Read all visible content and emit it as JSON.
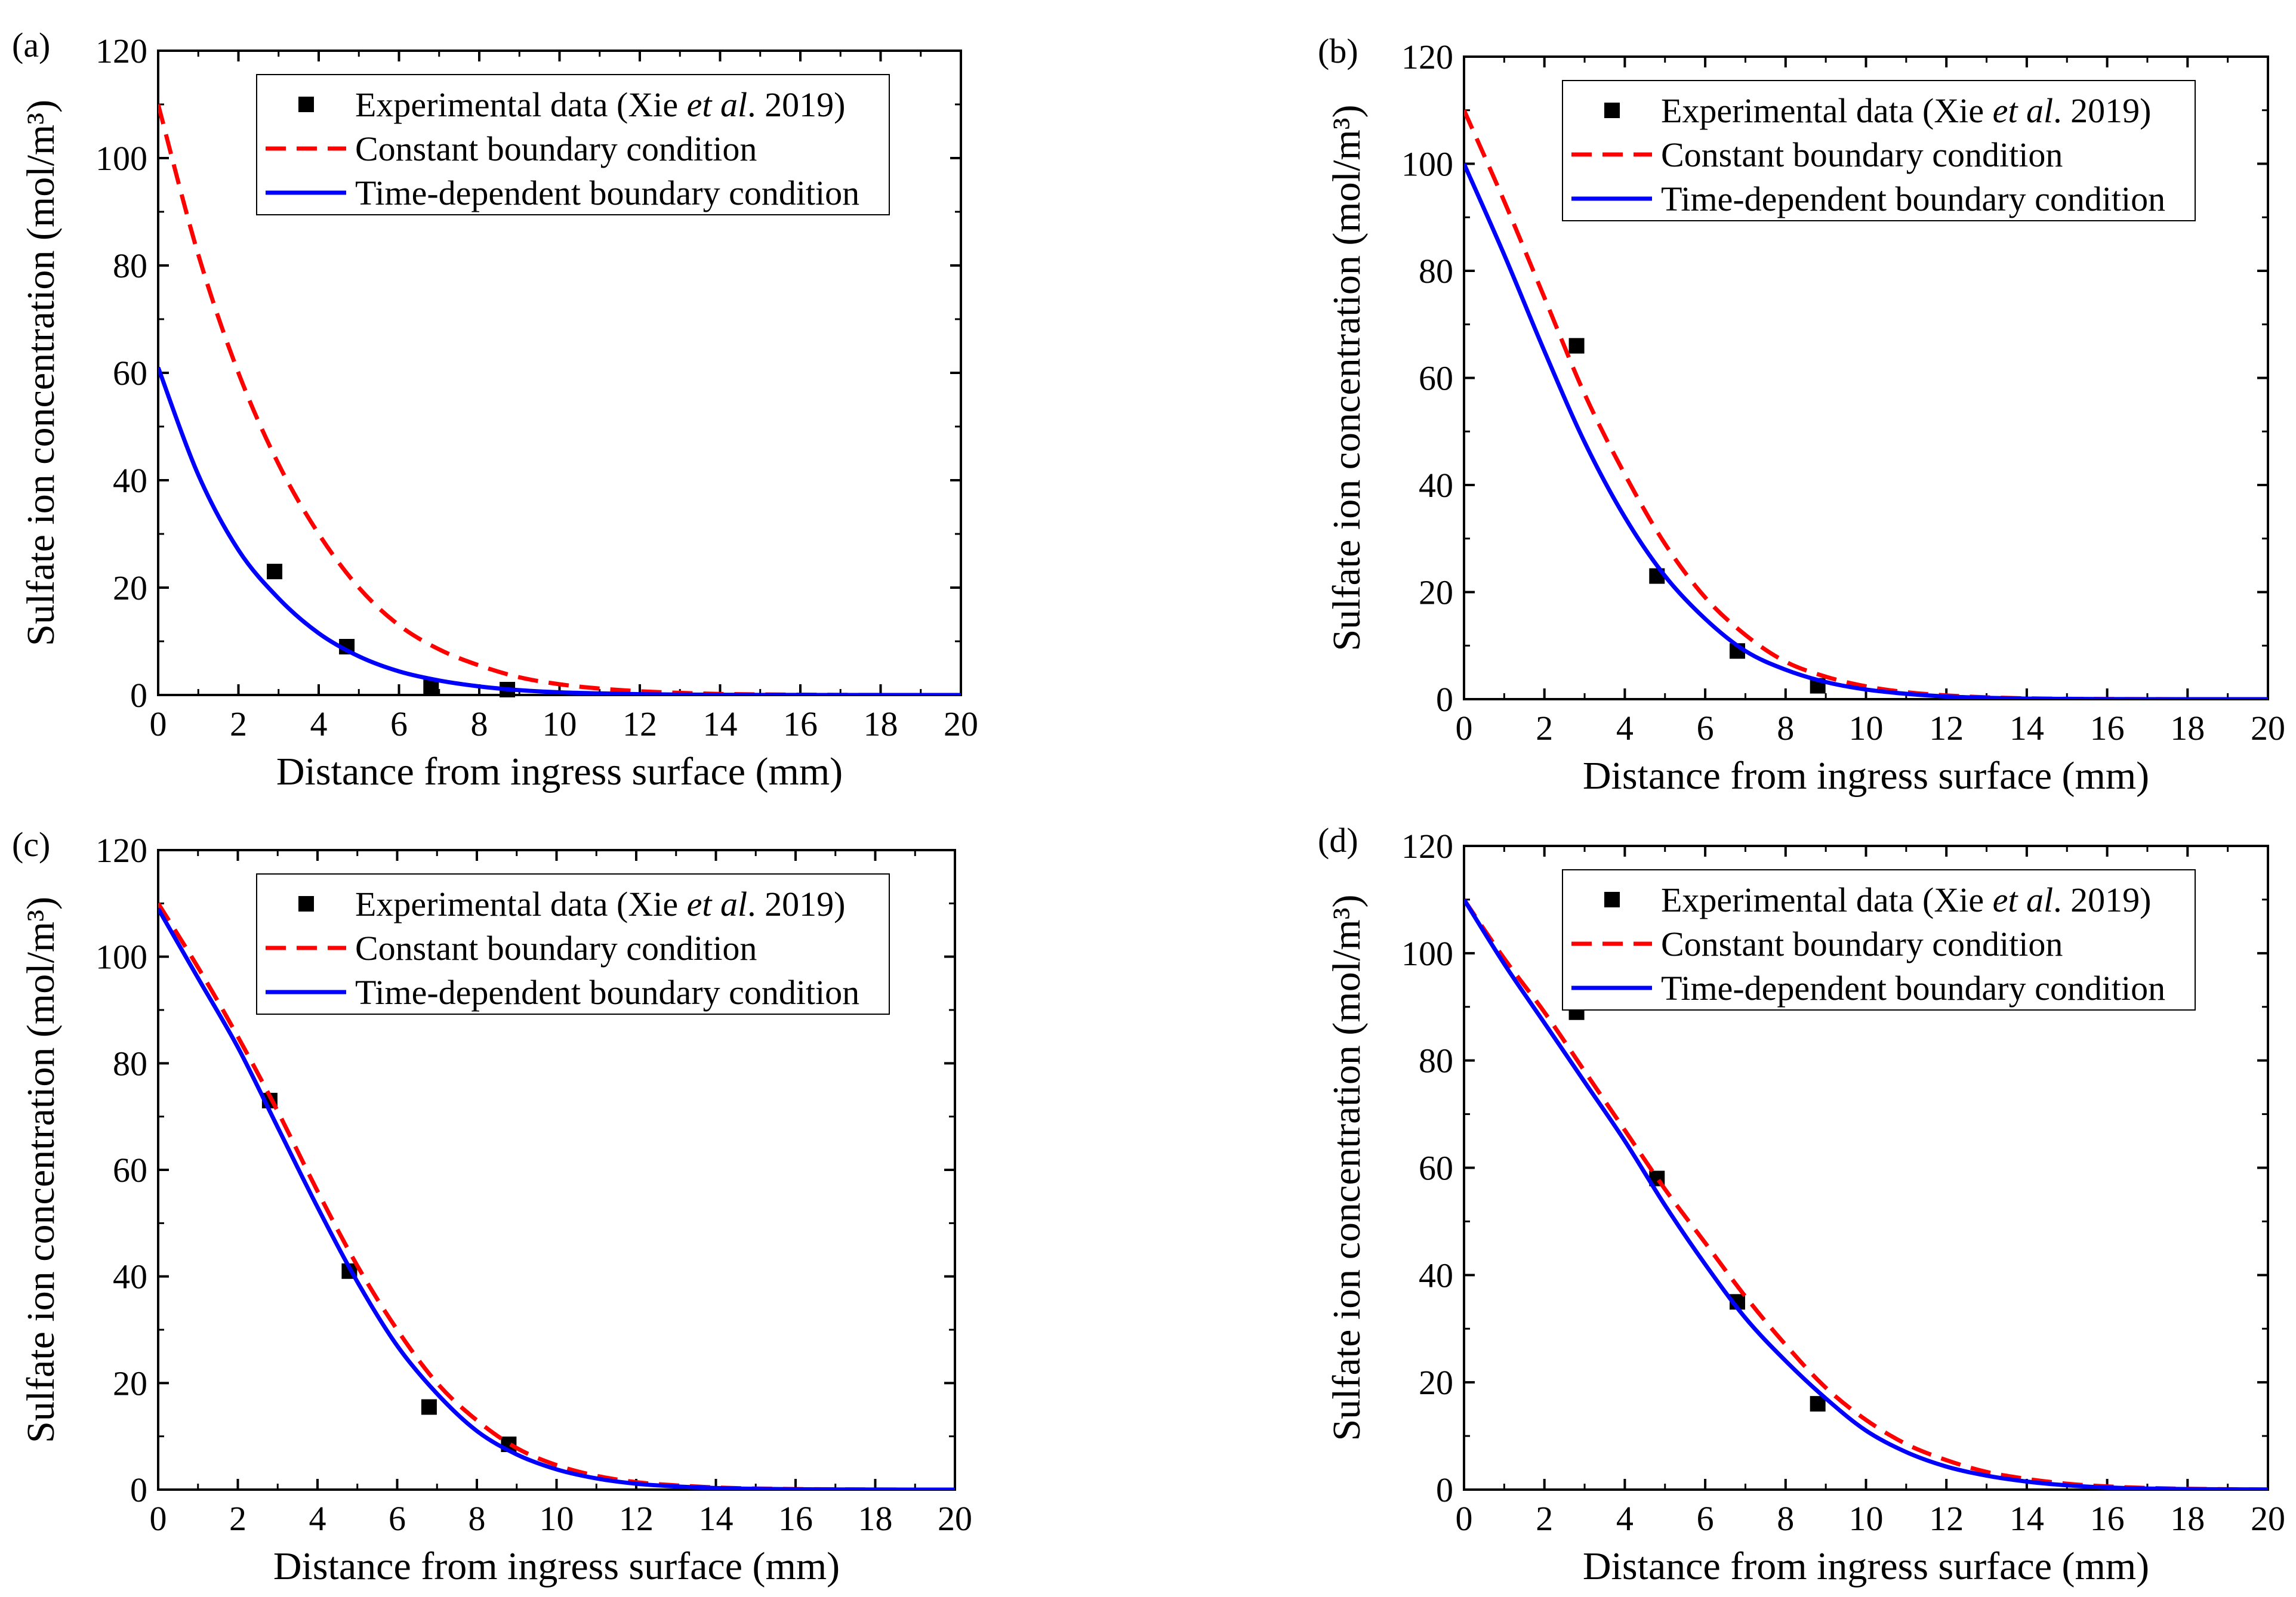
{
  "figure": {
    "panels": [
      "a",
      "b",
      "c",
      "d"
    ]
  },
  "chart_data": [
    {
      "type": "line",
      "panel_label": "(a)",
      "xlabel": "Distance from ingress surface (mm)",
      "ylabel": "Sulfate ion concentration (mol/m³)",
      "xlim": [
        0,
        20
      ],
      "ylim": [
        0,
        120
      ],
      "xticks": [
        "0",
        "2",
        "4",
        "6",
        "8",
        "10",
        "12",
        "14",
        "16",
        "18",
        "20"
      ],
      "yticks": [
        "0",
        "20",
        "40",
        "60",
        "80",
        "100",
        "120"
      ],
      "legend": {
        "position": "top-right",
        "entries": [
          {
            "label": "Experimental data (Xie ",
            "italic": "et al",
            "suffix": ". 2019)"
          },
          {
            "label": "Constant boundary condition"
          },
          {
            "label": "Time-dependent boundary condition"
          }
        ]
      },
      "series": [
        {
          "name": "Experimental data (Xie et al. 2019)",
          "style": "markers",
          "x": [
            2.9,
            4.7,
            6.8,
            8.7
          ],
          "y": [
            23,
            9,
            1.5,
            1
          ]
        },
        {
          "name": "Constant boundary condition",
          "style": "dashed",
          "color": "#ff0000",
          "x": [
            0,
            1,
            2,
            3,
            4,
            5,
            6,
            7,
            8,
            9,
            10,
            11,
            12,
            13,
            14,
            15,
            16,
            17,
            18,
            19,
            20
          ],
          "y": [
            110,
            82,
            60,
            43,
            30,
            20,
            13,
            8.5,
            5.5,
            3.3,
            2,
            1.2,
            0.7,
            0.4,
            0.2,
            0.1,
            0.05,
            0.03,
            0.01,
            0,
            0
          ]
        },
        {
          "name": "Time-dependent boundary condition",
          "style": "solid",
          "color": "#0000ff",
          "x": [
            0,
            1,
            2,
            3,
            4,
            5,
            6,
            7,
            8,
            9,
            10,
            11,
            12,
            13,
            14,
            15,
            16,
            17,
            18,
            19,
            20
          ],
          "y": [
            61,
            41,
            27,
            18,
            11.5,
            7.2,
            4.4,
            2.7,
            1.6,
            0.9,
            0.5,
            0.3,
            0.15,
            0.08,
            0.04,
            0.02,
            0.01,
            0,
            0,
            0,
            0
          ]
        }
      ]
    },
    {
      "type": "line",
      "panel_label": "(b)",
      "xlabel": "Distance from ingress surface (mm)",
      "ylabel": "Sulfate ion concentration (mol/m³)",
      "xlim": [
        0,
        20
      ],
      "ylim": [
        0,
        120
      ],
      "xticks": [
        "0",
        "2",
        "4",
        "6",
        "8",
        "10",
        "12",
        "14",
        "16",
        "18",
        "20"
      ],
      "yticks": [
        "0",
        "20",
        "40",
        "60",
        "80",
        "100",
        "120"
      ],
      "legend": {
        "position": "top-right",
        "entries": [
          {
            "label": "Experimental data (Xie ",
            "italic": "et al",
            "suffix": ". 2019)"
          },
          {
            "label": "Constant boundary condition"
          },
          {
            "label": "Time-dependent boundary condition"
          }
        ]
      },
      "series": [
        {
          "name": "Experimental data (Xie et al. 2019)",
          "style": "markers",
          "x": [
            2.8,
            4.8,
            6.8,
            8.8
          ],
          "y": [
            66,
            23,
            9,
            2.5
          ]
        },
        {
          "name": "Constant boundary condition",
          "style": "dashed",
          "color": "#ff0000",
          "x": [
            0,
            1,
            2,
            3,
            4,
            5,
            6,
            7,
            8,
            9,
            10,
            11,
            12,
            13,
            14,
            15,
            16,
            17,
            18,
            19,
            20
          ],
          "y": [
            110,
            93,
            75,
            57,
            42,
            29,
            19,
            12,
            7,
            4.2,
            2.4,
            1.3,
            0.7,
            0.35,
            0.15,
            0.07,
            0.03,
            0.01,
            0,
            0,
            0
          ]
        },
        {
          "name": "Time-dependent boundary condition",
          "style": "solid",
          "color": "#0000ff",
          "x": [
            0,
            1,
            2,
            3,
            4,
            5,
            6,
            7,
            8,
            9,
            10,
            11,
            12,
            13,
            14,
            15,
            16,
            17,
            18,
            19,
            20
          ],
          "y": [
            100,
            83,
            65,
            48,
            34,
            23,
            15,
            9,
            5.5,
            3.2,
            1.8,
            1,
            0.5,
            0.25,
            0.1,
            0.05,
            0.02,
            0,
            0,
            0,
            0
          ]
        }
      ]
    },
    {
      "type": "line",
      "panel_label": "(c)",
      "xlabel": "Distance from ingress surface (mm)",
      "ylabel": "Sulfate ion concentration (mol/m³)",
      "xlim": [
        0,
        20
      ],
      "ylim": [
        0,
        120
      ],
      "xticks": [
        "0",
        "2",
        "4",
        "6",
        "8",
        "10",
        "12",
        "14",
        "16",
        "18",
        "20"
      ],
      "yticks": [
        "0",
        "20",
        "40",
        "60",
        "80",
        "100",
        "120"
      ],
      "legend": {
        "position": "top-right",
        "entries": [
          {
            "label": "Experimental data (Xie ",
            "italic": "et al",
            "suffix": ". 2019)"
          },
          {
            "label": "Constant boundary condition"
          },
          {
            "label": "Time-dependent boundary condition"
          }
        ]
      },
      "series": [
        {
          "name": "Experimental data (Xie et al. 2019)",
          "style": "markers",
          "x": [
            2.8,
            4.8,
            6.8,
            8.8
          ],
          "y": [
            73,
            41,
            15.5,
            8.5
          ]
        },
        {
          "name": "Constant boundary condition",
          "style": "dashed",
          "color": "#ff0000",
          "x": [
            0,
            1,
            2,
            3,
            4,
            5,
            6,
            7,
            8,
            9,
            10,
            11,
            12,
            13,
            14,
            15,
            16,
            17,
            18,
            19,
            20
          ],
          "y": [
            110,
            98,
            85,
            71,
            56,
            42,
            30,
            20,
            13,
            7.8,
            4.6,
            2.6,
            1.4,
            0.8,
            0.4,
            0.2,
            0.1,
            0.05,
            0.02,
            0,
            0
          ]
        },
        {
          "name": "Time-dependent boundary condition",
          "style": "solid",
          "color": "#0000ff",
          "x": [
            0,
            1,
            2,
            3,
            4,
            5,
            6,
            7,
            8,
            9,
            10,
            11,
            12,
            13,
            14,
            15,
            16,
            17,
            18,
            19,
            20
          ],
          "y": [
            109,
            96,
            83,
            68,
            53,
            39,
            27,
            18,
            11,
            6.6,
            3.8,
            2.1,
            1.1,
            0.6,
            0.3,
            0.15,
            0.07,
            0.03,
            0.01,
            0,
            0
          ]
        }
      ]
    },
    {
      "type": "line",
      "panel_label": "(d)",
      "xlabel": "Distance from ingress surface (mm)",
      "ylabel": "Sulfate ion concentration (mol/m³)",
      "xlim": [
        0,
        20
      ],
      "ylim": [
        0,
        120
      ],
      "xticks": [
        "0",
        "2",
        "4",
        "6",
        "8",
        "10",
        "12",
        "14",
        "16",
        "18",
        "20"
      ],
      "yticks": [
        "0",
        "20",
        "40",
        "60",
        "80",
        "100",
        "120"
      ],
      "legend": {
        "position": "top-right",
        "entries": [
          {
            "label": "Experimental data (Xie ",
            "italic": "et al",
            "suffix": ". 2019)"
          },
          {
            "label": "Constant boundary condition"
          },
          {
            "label": "Time-dependent boundary condition"
          }
        ]
      },
      "series": [
        {
          "name": "Experimental data (Xie et al. 2019)",
          "style": "markers",
          "x": [
            2.8,
            4.8,
            6.8,
            8.8
          ],
          "y": [
            89,
            58,
            35,
            16
          ]
        },
        {
          "name": "Constant boundary condition",
          "style": "dashed",
          "color": "#ff0000",
          "x": [
            0,
            1,
            2,
            3,
            4,
            5,
            6,
            7,
            8,
            9,
            10,
            11,
            12,
            13,
            14,
            15,
            16,
            17,
            18,
            19,
            20
          ],
          "y": [
            110,
            99,
            89,
            78,
            67,
            56,
            46,
            36,
            27,
            19,
            13,
            8.5,
            5.5,
            3.3,
            2,
            1.1,
            0.6,
            0.3,
            0.15,
            0.07,
            0.03
          ]
        },
        {
          "name": "Time-dependent boundary condition",
          "style": "solid",
          "color": "#0000ff",
          "x": [
            0,
            1,
            2,
            3,
            4,
            5,
            6,
            7,
            8,
            9,
            10,
            11,
            12,
            13,
            14,
            15,
            16,
            17,
            18,
            19,
            20
          ],
          "y": [
            110,
            98,
            87,
            76,
            65,
            53,
            42,
            32,
            24,
            17,
            11,
            7,
            4.3,
            2.6,
            1.5,
            0.8,
            0.4,
            0.2,
            0.1,
            0.05,
            0.02
          ]
        }
      ]
    }
  ]
}
